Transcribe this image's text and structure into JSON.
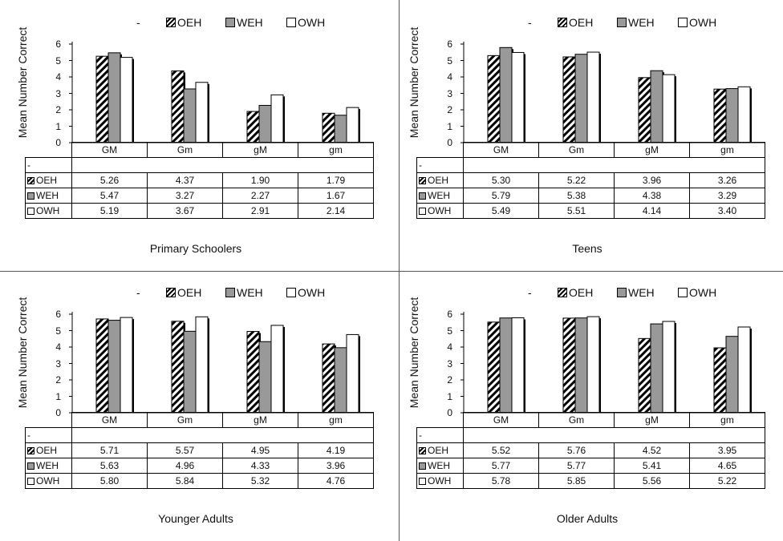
{
  "legend": {
    "dash": "-",
    "oeh": "OEH",
    "weh": "WEH",
    "owh": "OWH"
  },
  "table_blank_row_label": "-",
  "chart_data": [
    {
      "type": "bar",
      "title": "Primary Schoolers",
      "ylabel": "Mean Number Correct",
      "ylim": [
        0,
        6
      ],
      "yticks": [
        "0",
        "1",
        "2",
        "3",
        "4",
        "5",
        "6"
      ],
      "categories": [
        "GM",
        "Gm",
        "gM",
        "gm"
      ],
      "series": [
        {
          "name": "OEH",
          "values": [
            5.26,
            4.37,
            1.9,
            1.79
          ],
          "labels": [
            "5.26",
            "4.37",
            "1.90",
            "1.79"
          ]
        },
        {
          "name": "WEH",
          "values": [
            5.47,
            3.27,
            2.27,
            1.67
          ],
          "labels": [
            "5.47",
            "3.27",
            "2.27",
            "1.67"
          ]
        },
        {
          "name": "OWH",
          "values": [
            5.19,
            3.67,
            2.91,
            2.14
          ],
          "labels": [
            "5.19",
            "3.67",
            "2.91",
            "2.14"
          ]
        }
      ]
    },
    {
      "type": "bar",
      "title": "Teens",
      "ylabel": "Mean Number Correct",
      "ylim": [
        0,
        6
      ],
      "yticks": [
        "0",
        "1",
        "2",
        "3",
        "4",
        "5",
        "6"
      ],
      "categories": [
        "GM",
        "Gm",
        "gM",
        "gm"
      ],
      "series": [
        {
          "name": "OEH",
          "values": [
            5.3,
            5.22,
            3.96,
            3.26
          ],
          "labels": [
            "5.30",
            "5.22",
            "3.96",
            "3.26"
          ]
        },
        {
          "name": "WEH",
          "values": [
            5.79,
            5.38,
            4.38,
            3.29
          ],
          "labels": [
            "5.79",
            "5.38",
            "4.38",
            "3.29"
          ]
        },
        {
          "name": "OWH",
          "values": [
            5.49,
            5.51,
            4.14,
            3.4
          ],
          "labels": [
            "5.49",
            "5.51",
            "4.14",
            "3.40"
          ]
        }
      ]
    },
    {
      "type": "bar",
      "title": "Younger Adults",
      "ylabel": "Mean Number Correct",
      "ylim": [
        0,
        6
      ],
      "yticks": [
        "0",
        "1",
        "2",
        "3",
        "4",
        "5",
        "6"
      ],
      "categories": [
        "GM",
        "Gm",
        "gM",
        "gm"
      ],
      "series": [
        {
          "name": "OEH",
          "values": [
            5.71,
            5.57,
            4.95,
            4.19
          ],
          "labels": [
            "5.71",
            "5.57",
            "4.95",
            "4.19"
          ]
        },
        {
          "name": "WEH",
          "values": [
            5.63,
            4.96,
            4.33,
            3.96
          ],
          "labels": [
            "5.63",
            "4.96",
            "4.33",
            "3.96"
          ]
        },
        {
          "name": "OWH",
          "values": [
            5.8,
            5.84,
            5.32,
            4.76
          ],
          "labels": [
            "5.80",
            "5.84",
            "5.32",
            "4.76"
          ]
        }
      ]
    },
    {
      "type": "bar",
      "title": "Older Adults",
      "ylabel": "Mean Number Correct",
      "ylim": [
        0,
        6
      ],
      "yticks": [
        "0",
        "1",
        "2",
        "3",
        "4",
        "5",
        "6"
      ],
      "categories": [
        "GM",
        "Gm",
        "gM",
        "gm"
      ],
      "series": [
        {
          "name": "OEH",
          "values": [
            5.52,
            5.76,
            4.52,
            3.95
          ],
          "labels": [
            "5.52",
            "5.76",
            "4.52",
            "3.95"
          ]
        },
        {
          "name": "WEH",
          "values": [
            5.77,
            5.77,
            5.41,
            4.65
          ],
          "labels": [
            "5.77",
            "5.77",
            "5.41",
            "4.65"
          ]
        },
        {
          "name": "OWH",
          "values": [
            5.78,
            5.85,
            5.56,
            5.22
          ],
          "labels": [
            "5.78",
            "5.85",
            "5.56",
            "5.22"
          ]
        }
      ]
    }
  ],
  "colors": {
    "oeh": "hatched-black-white",
    "weh": "#999999",
    "owh": "#ffffff"
  }
}
